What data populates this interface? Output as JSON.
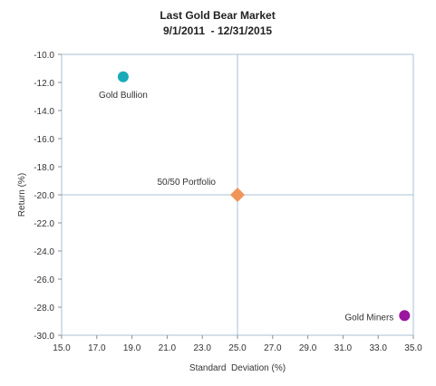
{
  "chart_data": {
    "type": "scatter",
    "title": "Last Gold Bear Market",
    "subtitle": "9/1/2011  - 12/31/2015",
    "xlabel": "Standard  Deviation (%)",
    "ylabel": "Return (%)",
    "xlim": [
      15.0,
      35.0
    ],
    "ylim": [
      -30.0,
      -10.0
    ],
    "x_ticks": [
      "15.0",
      "17.0",
      "19.0",
      "21.0",
      "23.0",
      "25.0",
      "27.0",
      "29.0",
      "31.0",
      "33.0",
      "35.0"
    ],
    "y_ticks": [
      "-10.0",
      "-12.0",
      "-14.0",
      "-16.0",
      "-18.0",
      "-20.0",
      "-22.0",
      "-24.0",
      "-26.0",
      "-28.0",
      "-30.0"
    ],
    "reference_lines": {
      "x": 25.0,
      "y": -20.0
    },
    "grid": false,
    "points": [
      {
        "label": "Gold Bullion",
        "x": 18.5,
        "y": -11.6,
        "color": "#1aaab8",
        "marker": "circle"
      },
      {
        "label": "50/50 Portfolio",
        "x": 25.0,
        "y": -20.0,
        "color": "#f0955a",
        "marker": "diamond"
      },
      {
        "label": "Gold Miners",
        "x": 34.5,
        "y": -28.6,
        "color": "#9b159e",
        "marker": "circle"
      }
    ]
  }
}
